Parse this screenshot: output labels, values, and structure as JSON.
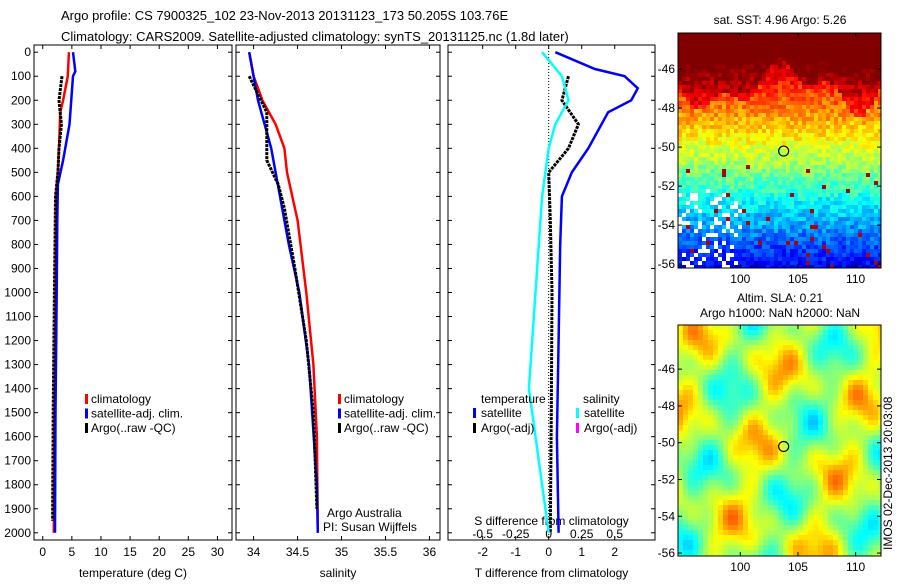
{
  "header": {
    "line1": "Argo profile: CS 7900325_102 23-Nov-2013 20131123_173 50.205S 103.76E",
    "line2": "Climatology: CARS2009. Satellite-adjusted climatology: synTS_20131125.nc (1.8d later)"
  },
  "side_stamp": "IMOS 02-Dec-2013 20:03:08",
  "colors": {
    "climatology": "#ff0000",
    "satellite": "#0000ff",
    "argo": "#000000",
    "salinity_satellite": "#00ffff",
    "salinity_argo": "#ff00ff"
  },
  "chart_data": [
    {
      "type": "line",
      "name": "temperature",
      "xlabel": "temperature (deg C)",
      "ylabel": "",
      "xlim": [
        -1.5,
        32.5
      ],
      "ylim": [
        2030,
        -30
      ],
      "xticks": [
        "0",
        "5",
        "10",
        "15",
        "20",
        "25",
        "30"
      ],
      "yticks": [
        "0",
        "100",
        "200",
        "300",
        "400",
        "500",
        "600",
        "700",
        "800",
        "900",
        "1000",
        "1100",
        "1200",
        "1300",
        "1400",
        "1500",
        "1600",
        "1700",
        "1800",
        "1900",
        "2000"
      ],
      "legend": [
        "climatology",
        "satellite-adj. clim.",
        "Argo(..raw -QC)"
      ],
      "series": [
        {
          "name": "climatology",
          "color": "#ff0000",
          "depth": [
            0,
            100,
            200,
            250,
            400,
            500,
            600,
            800,
            1000,
            1500,
            2000
          ],
          "values": [
            4.5,
            4.3,
            3.5,
            3.0,
            2.8,
            2.6,
            2.3,
            2.25,
            2.2,
            2.0,
            1.9
          ]
        },
        {
          "name": "satellite-adj. clim.",
          "color": "#0000ff",
          "depth": [
            0,
            80,
            100,
            300,
            450,
            550,
            700,
            1000,
            1500,
            2000
          ],
          "values": [
            5.2,
            5.6,
            5.2,
            4.6,
            3.5,
            2.6,
            2.5,
            2.4,
            2.2,
            2.1
          ]
        },
        {
          "name": "Argo(..raw -QC)",
          "color": "#000000",
          "depth": [
            100,
            200,
            300,
            400,
            500,
            600,
            800,
            1000,
            1500,
            1950
          ],
          "values": [
            3.3,
            2.8,
            3.2,
            2.8,
            2.6,
            2.2,
            2.1,
            2.0,
            1.8,
            1.7
          ]
        }
      ]
    },
    {
      "type": "line",
      "name": "salinity",
      "xlabel": "salinity",
      "xlim": [
        33.8,
        36.12
      ],
      "ylim": [
        2030,
        -30
      ],
      "xticks": [
        "34",
        "34.5",
        "35",
        "35.5",
        "36"
      ],
      "legend": [
        "climatology",
        "satellite-adj. clim.",
        "Argo(..raw -QC)"
      ],
      "annotation": [
        "Argo Australia",
        "PI: Susan Wijffels"
      ],
      "series": [
        {
          "name": "climatology",
          "color": "#ff0000",
          "depth": [
            0,
            100,
            200,
            300,
            400,
            500,
            700,
            1000,
            1300,
            1600,
            2000
          ],
          "values": [
            33.95,
            34.0,
            34.1,
            34.25,
            34.35,
            34.38,
            34.5,
            34.6,
            34.68,
            34.72,
            34.73
          ]
        },
        {
          "name": "satellite-adj. clim.",
          "color": "#0000ff",
          "depth": [
            0,
            200,
            400,
            600,
            800,
            1000,
            1300,
            1800,
            2000
          ],
          "values": [
            33.95,
            34.05,
            34.2,
            34.3,
            34.4,
            34.52,
            34.63,
            34.72,
            34.73
          ]
        },
        {
          "name": "Argo(..raw -QC)",
          "color": "#000000",
          "depth": [
            100,
            250,
            450,
            550,
            650,
            900,
            1200,
            1500,
            1900
          ],
          "values": [
            33.95,
            34.15,
            34.15,
            34.28,
            34.35,
            34.47,
            34.6,
            34.68,
            34.72
          ]
        }
      ]
    },
    {
      "type": "line",
      "name": "difference-from-climatology",
      "xlabel": "T difference from climatology",
      "x2label": "S difference from climatology",
      "xlim": [
        -3.05,
        3.22
      ],
      "x2lim": [
        -0.763,
        0.805
      ],
      "ylim": [
        2030,
        -30
      ],
      "xticks": [
        "-2",
        "-1",
        "0",
        "1",
        "2"
      ],
      "x2ticks": [
        "-0.5",
        "-0.25",
        "0",
        "0.25",
        "0.5"
      ],
      "legend": {
        "temperature_title": "temperature",
        "salinity_title": "salinity",
        "t_satellite": "satellite",
        "t_argo": "Argo(-adj)",
        "s_satellite": "satellite",
        "s_argo": "Argo(-adj)"
      },
      "series": [
        {
          "name": "temperature satellite",
          "color": "#0000ff",
          "axis": "T",
          "depth": [
            0,
            70,
            100,
            150,
            200,
            250,
            400,
            500,
            600,
            800,
            1200,
            1600,
            2000
          ],
          "values": [
            0.2,
            1.4,
            2.3,
            2.7,
            2.5,
            1.8,
            1.2,
            0.7,
            0.4,
            0.35,
            0.3,
            0.25,
            0.3
          ]
        },
        {
          "name": "temperature Argo(-adj)",
          "color": "#000000",
          "axis": "T",
          "depth": [
            100,
            200,
            300,
            400,
            500,
            700,
            1000,
            1500,
            2000
          ],
          "values": [
            0.6,
            0.4,
            0.9,
            0.6,
            0.0,
            0.05,
            0.1,
            0.08,
            0.05
          ]
        },
        {
          "name": "salinity satellite",
          "color": "#00ffff",
          "axis": "S",
          "depth": [
            0,
            100,
            200,
            300,
            400,
            600,
            1000,
            1400,
            1800,
            2000
          ],
          "values": [
            -0.05,
            0.1,
            0.15,
            0.05,
            0.0,
            -0.05,
            -0.1,
            -0.15,
            -0.05,
            0.0
          ]
        }
      ]
    },
    {
      "type": "heatmap",
      "name": "satellite-sst-map",
      "title": "sat. SST: 4.96 Argo: 5.26",
      "xlim": [
        94.6,
        112.2
      ],
      "ylim": [
        -56.2,
        -44.15
      ],
      "xticks": [
        "100",
        "105",
        "110"
      ],
      "yticks": [
        "-46",
        "-48",
        "-50",
        "-52",
        "-54",
        "-56"
      ],
      "argo_position": {
        "lon": 103.76,
        "lat": -50.205
      }
    },
    {
      "type": "heatmap",
      "name": "altimetry-sla-map",
      "title": "Altim. SLA: 0.21",
      "subtitle": "Argo h1000: NaN h2000: NaN",
      "xlim": [
        94.6,
        112.2
      ],
      "ylim": [
        -56.16,
        -43.6
      ],
      "xticks": [
        "100",
        "105",
        "110"
      ],
      "yticks": [
        "-46",
        "-48",
        "-50",
        "-52",
        "-54",
        "-56"
      ],
      "argo_position": {
        "lon": 103.76,
        "lat": -50.205
      }
    }
  ]
}
